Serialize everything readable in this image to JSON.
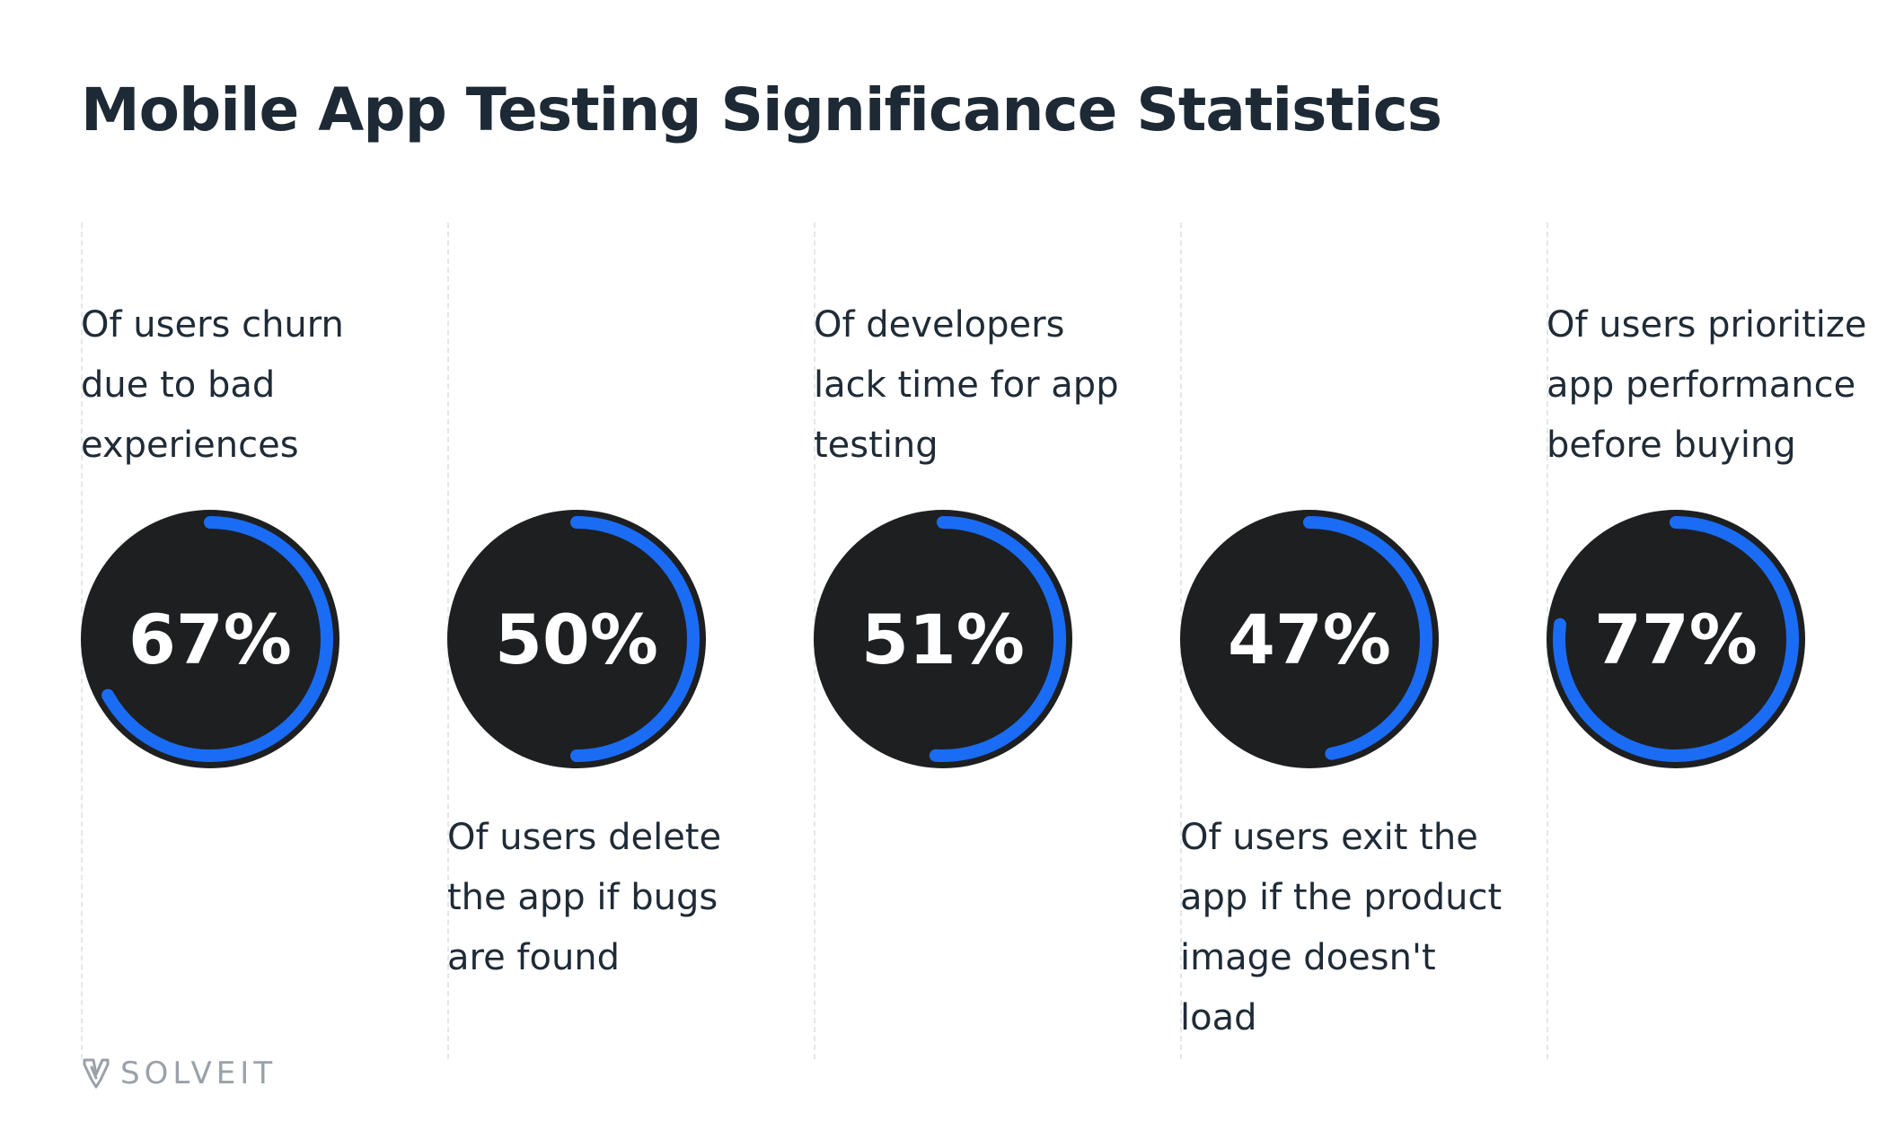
{
  "title": "Mobile App Testing Significance Statistics",
  "brand": {
    "name": "SOLVEIT",
    "icon": "solveit-logo-icon"
  },
  "colors": {
    "background": "#ffffff",
    "title": "#1d2934",
    "text": "#1f2b36",
    "circle_fill": "#1e1f21",
    "arc": "#1a6cf5",
    "divider": "#e4e7ea",
    "brand": "#9aa1a8"
  },
  "chart_data": {
    "type": "radial",
    "items": [
      {
        "value": 67,
        "label": "67%",
        "description": "Of users churn due to bad experiences",
        "text_position": "above"
      },
      {
        "value": 50,
        "label": "50%",
        "description": "Of users delete the app if bugs are found",
        "text_position": "below"
      },
      {
        "value": 51,
        "label": "51%",
        "description": "Of developers lack time for app testing",
        "text_position": "above"
      },
      {
        "value": 47,
        "label": "47%",
        "description": "Of users exit the app if the product image doesn't load",
        "text_position": "below"
      },
      {
        "value": 77,
        "label": "77%",
        "description": "Of users prioritize app performance before buying",
        "text_position": "above"
      }
    ]
  }
}
